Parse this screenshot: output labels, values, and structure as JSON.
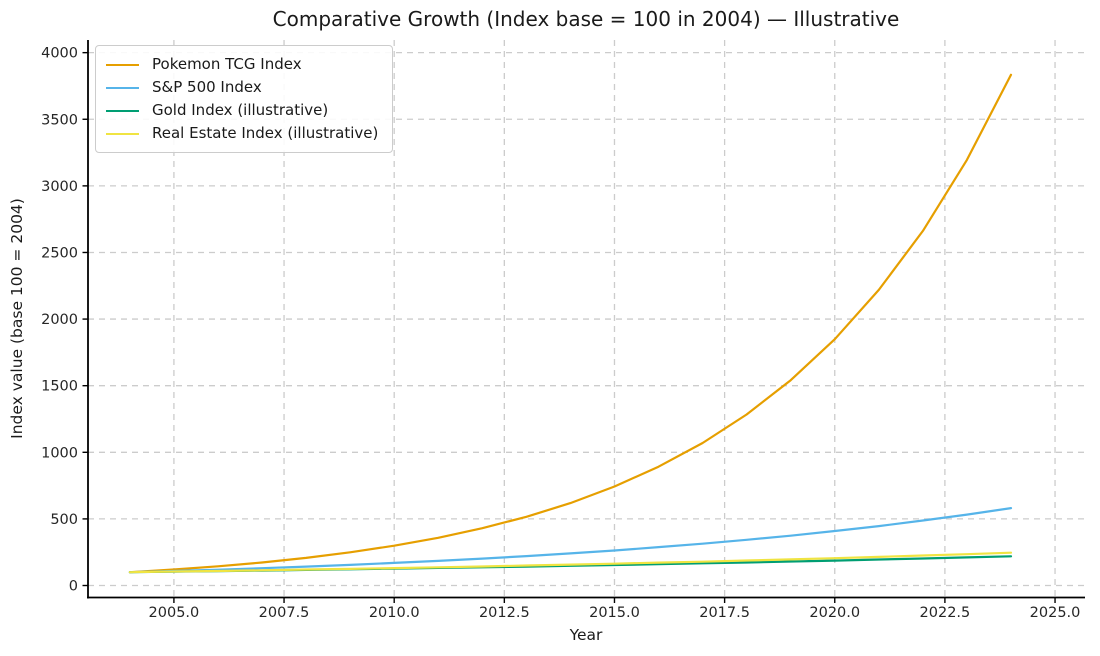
{
  "chart_data": {
    "type": "line",
    "title": "Comparative Growth (Index base = 100 in 2004) — Illustrative",
    "xlabel": "Year",
    "ylabel": "Index value (base 100 = 2004)",
    "x": [
      2004,
      2005,
      2006,
      2007,
      2008,
      2009,
      2010,
      2011,
      2012,
      2013,
      2014,
      2015,
      2016,
      2017,
      2018,
      2019,
      2020,
      2021,
      2022,
      2023,
      2024
    ],
    "series": [
      {
        "name": "Pokemon TCG Index",
        "color": "#E69F00",
        "values": [
          100,
          120,
          144,
          173,
          207,
          249,
          299,
          358,
          430,
          516,
          619,
          743,
          892,
          1070,
          1284,
          1541,
          1849,
          2219,
          2662,
          3195,
          3834
        ]
      },
      {
        "name": "S&P 500 Index",
        "color": "#56B4E9",
        "values": [
          100,
          109,
          119,
          130,
          142,
          155,
          170,
          185,
          202,
          221,
          241,
          263,
          288,
          314,
          343,
          374,
          409,
          446,
          488,
          532,
          581
        ]
      },
      {
        "name": "Gold Index (illustrative)",
        "color": "#009E73",
        "values": [
          100,
          104,
          108,
          112,
          117,
          122,
          127,
          132,
          137,
          142,
          148,
          154,
          160,
          167,
          173,
          180,
          187,
          195,
          203,
          211,
          219
        ]
      },
      {
        "name": "Real Estate Index (illustrative)",
        "color": "#F0E442",
        "values": [
          100,
          105,
          109,
          114,
          120,
          125,
          131,
          137,
          143,
          150,
          157,
          164,
          172,
          179,
          188,
          196,
          205,
          215,
          225,
          235,
          246
        ]
      }
    ],
    "x_tick_values": [
      2005,
      2007.5,
      2010,
      2012.5,
      2015,
      2017.5,
      2020,
      2022.5,
      2025
    ],
    "x_tick_labels": [
      "2005.0",
      "2007.5",
      "2010.0",
      "2012.5",
      "2015.0",
      "2017.5",
      "2020.0",
      "2022.5",
      "2025.0"
    ],
    "y_tick_values": [
      0,
      500,
      1000,
      1500,
      2000,
      2500,
      3000,
      3500,
      4000
    ],
    "y_tick_labels": [
      "0",
      "500",
      "1000",
      "1500",
      "2000",
      "2500",
      "3000",
      "3500",
      "4000"
    ],
    "xlim": [
      2003.05,
      2025.68
    ],
    "ylim": [
      -90,
      4095
    ],
    "grid": {
      "visible": true,
      "linestyle": "dashed",
      "color": "#cccccc"
    },
    "legend_position": "upper-left",
    "background_color": "#ffffff",
    "spines": {
      "left": true,
      "bottom": true,
      "top": false,
      "right": false
    }
  }
}
